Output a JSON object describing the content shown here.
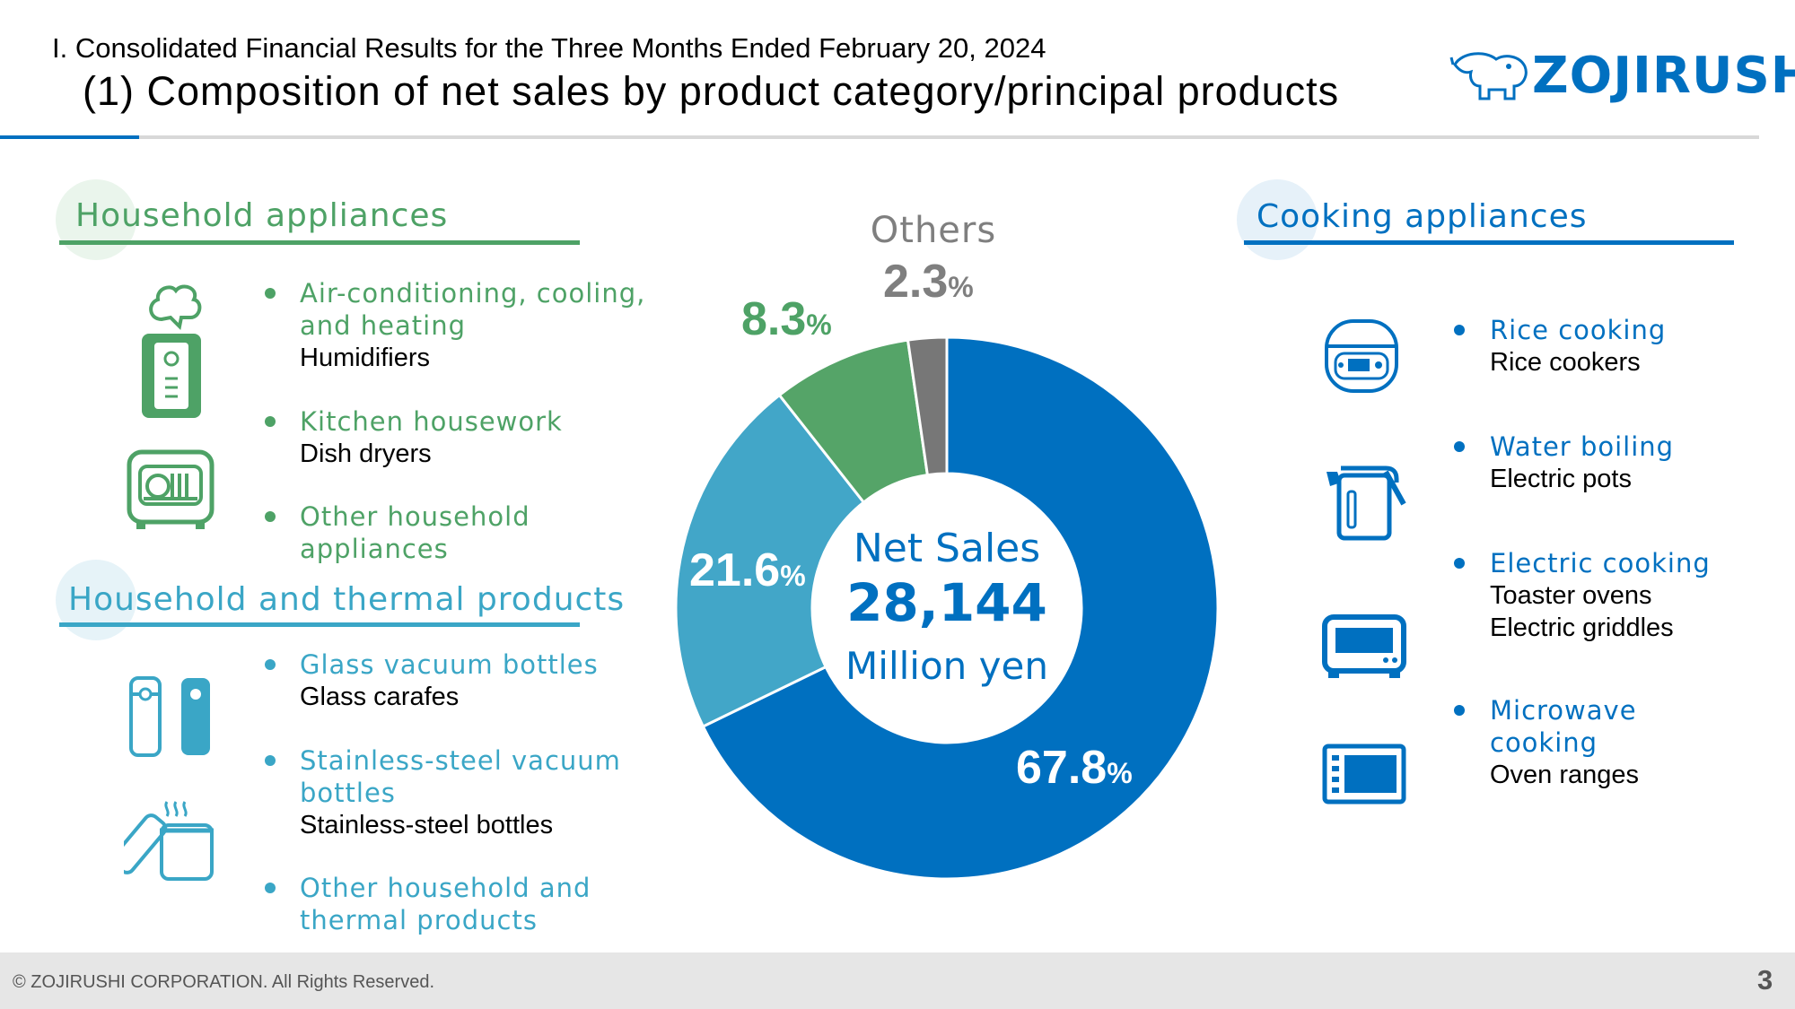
{
  "header": {
    "subtitle": "I. Consolidated Financial Results for the Three Months Ended February 20, 2024",
    "title": "(1) Composition of net sales by product category/principal products",
    "logo_text": "ZOJIRUSHI"
  },
  "colors": {
    "household_appliances": "#4ea266",
    "household_thermal": "#3aa6c6",
    "cooking": "#0070c0",
    "others": "#7f7f7f"
  },
  "household_appliances": {
    "heading": "Household appliances",
    "items": [
      {
        "category": "Air-conditioning, cooling, and heating",
        "products": [
          "Humidifiers"
        ]
      },
      {
        "category": "Kitchen housework",
        "products": [
          "Dish dryers"
        ]
      },
      {
        "category": "Other household appliances",
        "products": []
      }
    ]
  },
  "household_thermal": {
    "heading": "Household and thermal products",
    "items": [
      {
        "category": "Glass vacuum bottles",
        "products": [
          "Glass carafes"
        ]
      },
      {
        "category": "Stainless-steel vacuum bottles",
        "products": [
          "Stainless-steel bottles"
        ]
      },
      {
        "category": "Other household and thermal products",
        "products": []
      }
    ]
  },
  "cooking": {
    "heading": "Cooking appliances",
    "items": [
      {
        "category": "Rice cooking",
        "products": [
          "Rice cookers"
        ]
      },
      {
        "category": "Water boiling",
        "products": [
          "Electric pots"
        ]
      },
      {
        "category": "Electric cooking",
        "products": [
          "Toaster ovens",
          "Electric griddles"
        ]
      },
      {
        "category": "Microwave cooking",
        "products": [
          "Oven ranges"
        ]
      }
    ]
  },
  "chart_data": {
    "type": "pie",
    "donut": true,
    "categories": [
      "Cooking appliances",
      "Household and thermal products",
      "Household appliances",
      "Others"
    ],
    "values": [
      67.8,
      21.6,
      8.3,
      2.3
    ],
    "value_labels": [
      "67.8",
      "21.6",
      "8.3",
      "2.3"
    ],
    "unit": "%",
    "colors": [
      "#0070c0",
      "#42a6c8",
      "#55a468",
      "#777777"
    ],
    "slice_name_labels": [
      "",
      "",
      "",
      "Others"
    ],
    "center": {
      "title": "Net Sales",
      "value": "28,144",
      "unit": "Million yen"
    }
  },
  "footer": {
    "copyright": "© ZOJIRUSHI CORPORATION. All Rights Reserved.",
    "page_number": "3"
  }
}
